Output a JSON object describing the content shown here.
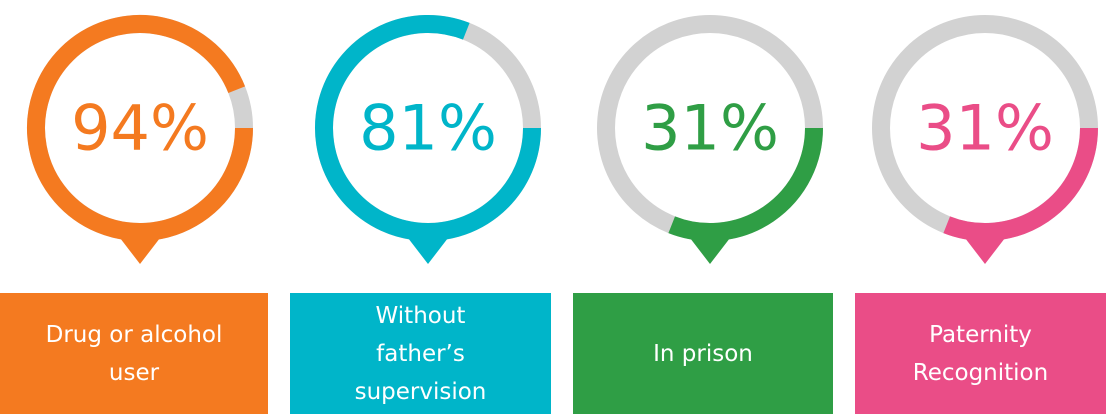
{
  "chart_data": [
    {
      "type": "donut",
      "value": 94,
      "value_label": "94%",
      "label": "Drug or alcohol user",
      "color": "#f47a20"
    },
    {
      "type": "donut",
      "value": 81,
      "value_label": "81%",
      "label": "Without father’s supervision",
      "color": "#00b5c9"
    },
    {
      "type": "donut",
      "value": 31,
      "value_label": "31%",
      "label": "In prison",
      "color": "#2f9e45"
    },
    {
      "type": "donut",
      "value": 31,
      "value_label": "31%",
      "label": "Paternity Recognition",
      "color": "#ea4d87"
    }
  ]
}
